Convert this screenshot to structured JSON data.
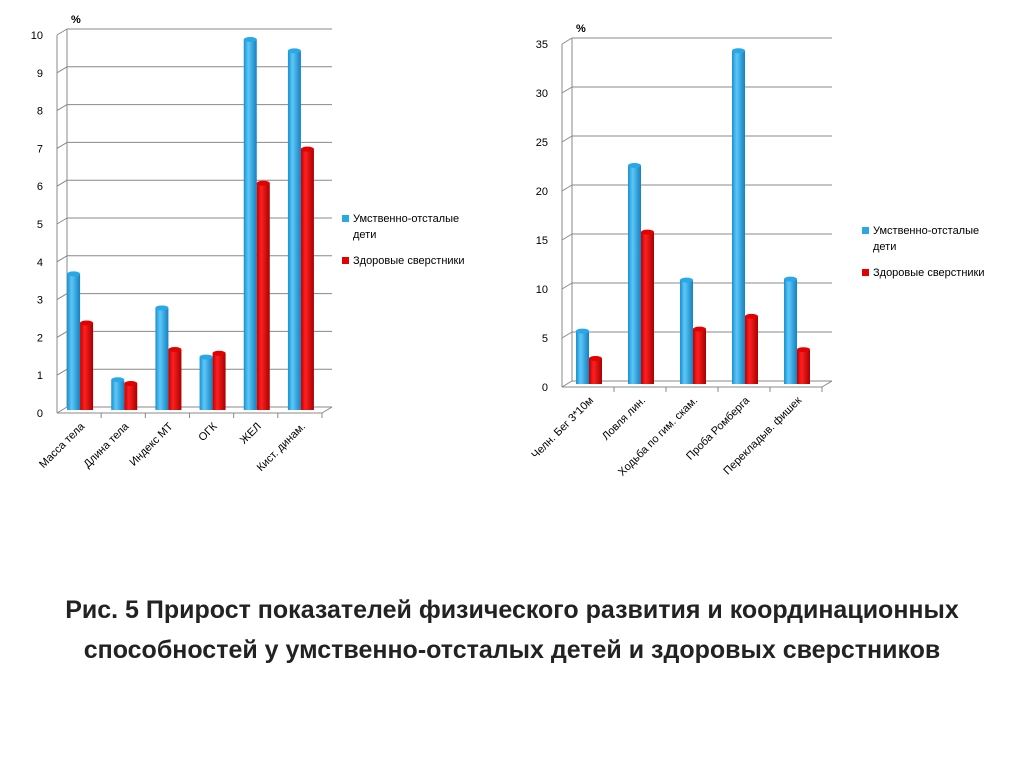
{
  "title": "Рис. 5 Прирост показателей физического развития и координационных способностей у умственно-отсталых детей и здоровых сверстников",
  "chart_data": [
    {
      "type": "bar",
      "ylabel": "%",
      "ylim": [
        0,
        10
      ],
      "yticks": [
        0,
        1,
        2,
        3,
        4,
        5,
        6,
        7,
        8,
        9,
        10
      ],
      "grid": true,
      "legend_position": "right",
      "categories": [
        "Масса тела",
        "Длина тела",
        "Индекс МТ",
        "ОГК",
        "ЖЕЛ",
        "Кист. динам."
      ],
      "series": [
        {
          "name": "Умственно-отсталые дети",
          "color": "#29a8e8",
          "values": [
            3.6,
            0.8,
            2.7,
            1.4,
            9.8,
            9.5
          ]
        },
        {
          "name": "Здоровые сверстники",
          "color": "#e50000",
          "values": [
            2.3,
            0.7,
            1.6,
            1.5,
            6.0,
            6.9
          ]
        }
      ]
    },
    {
      "type": "bar",
      "ylabel": "%",
      "ylim": [
        0,
        35
      ],
      "yticks": [
        0,
        5,
        10,
        15,
        20,
        25,
        30,
        35
      ],
      "grid": true,
      "legend_position": "right",
      "categories": [
        "Челн. Бег 3*10м",
        "Ловля лин.",
        "Ходьба по гим. скам.",
        "Проба Ромберга",
        "Перекладыв. фишек"
      ],
      "series": [
        {
          "name": "Умственно-отсталые дети",
          "color": "#29a8e8",
          "values": [
            5.4,
            22.3,
            10.6,
            34.0,
            10.7
          ]
        },
        {
          "name": "Здоровые сверстники",
          "color": "#e50000",
          "values": [
            2.6,
            15.5,
            5.6,
            6.9,
            3.5
          ]
        }
      ]
    }
  ]
}
